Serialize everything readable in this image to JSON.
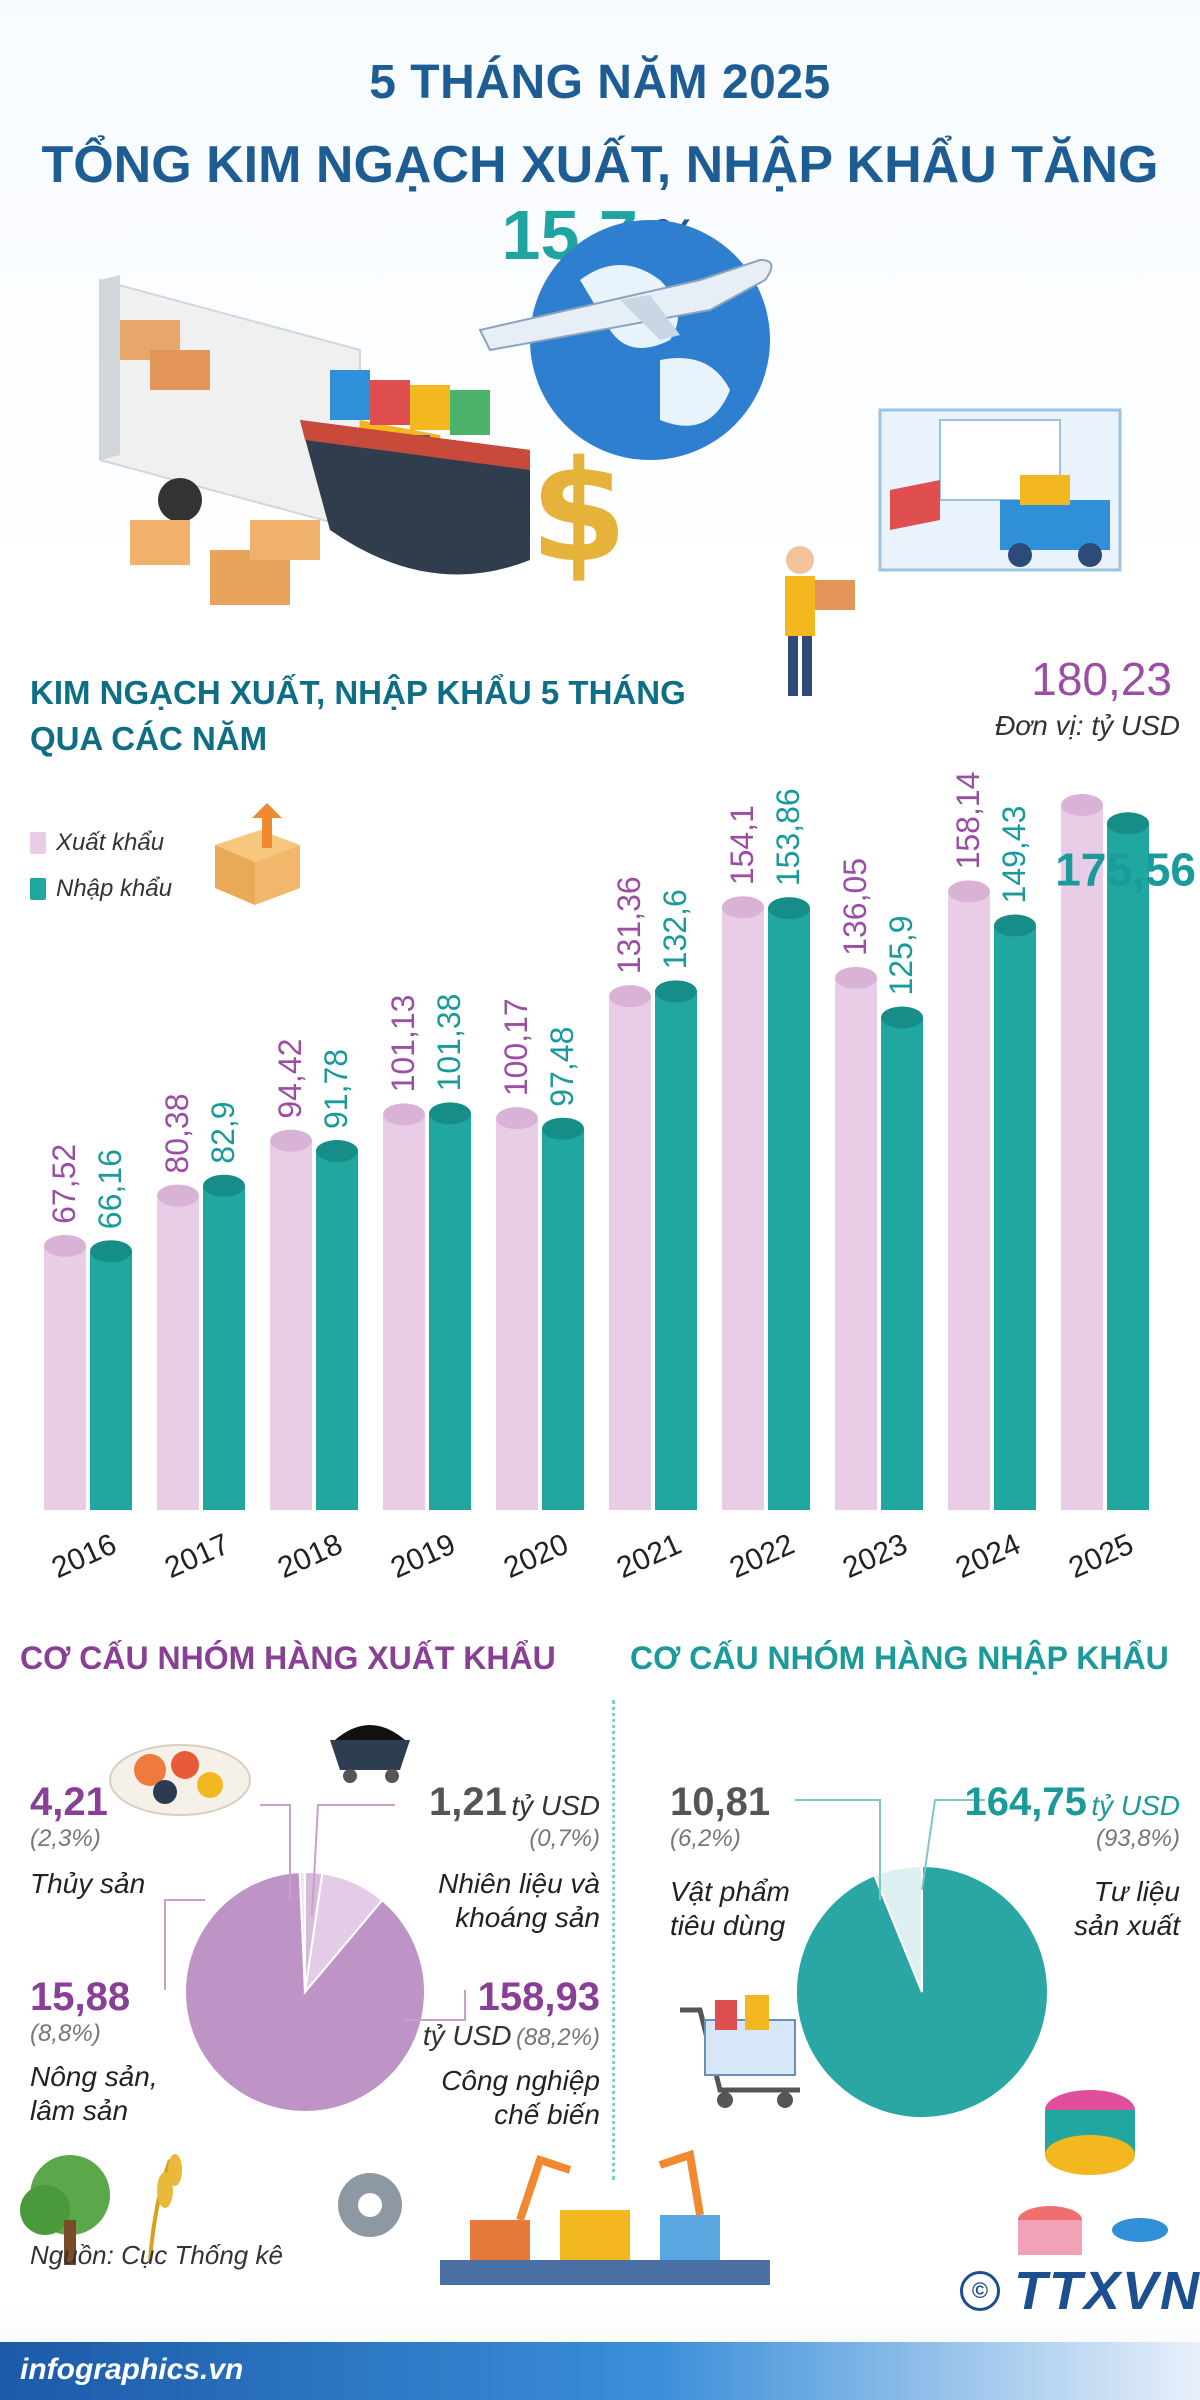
{
  "header": {
    "line1": "5 THÁNG NĂM 2025",
    "line2_text": "TỔNG KIM NGẠCH XUẤT, NHẬP KHẨU TĂNG ",
    "line2_value": "15,7",
    "line2_unit": " %"
  },
  "bar_section": {
    "title_line1": "KIM NGẠCH XUẤT, NHẬP KHẨU 5 THÁNG",
    "title_line2": "QUA CÁC NĂM",
    "unit": "Đơn vị: tỷ USD"
  },
  "colors": {
    "export": "#e9cde6",
    "import": "#1fa7a0",
    "export_text": "#9b4ea4",
    "import_text": "#1a9a9a"
  },
  "chart_data": [
    {
      "type": "bar",
      "categories": [
        "2016",
        "2017",
        "2018",
        "2019",
        "2020",
        "2021",
        "2022",
        "2023",
        "2024",
        "2025"
      ],
      "series": [
        {
          "name": "Xuất khẩu",
          "values": [
            67.52,
            80.38,
            94.42,
            101.13,
            100.17,
            131.36,
            154.1,
            136.05,
            158.14,
            180.23
          ],
          "labels": [
            "67,52",
            "80,38",
            "94,42",
            "101,13",
            "100,17",
            "131,36",
            "154,1",
            "136,05",
            "158,14",
            "180,23"
          ]
        },
        {
          "name": "Nhập khẩu",
          "values": [
            66.16,
            82.9,
            91.78,
            101.38,
            97.48,
            132.6,
            153.86,
            125.9,
            149.43,
            175.56
          ],
          "labels": [
            "66,16",
            "82,9",
            "91,78",
            "101,38",
            "97,48",
            "132,6",
            "153,86",
            "125,9",
            "149,43",
            "175,56"
          ]
        }
      ],
      "title": "KIM NGẠCH XUẤT, NHẬP KHẨU 5 THÁNG QUA CÁC NĂM",
      "ylabel": "Đơn vị: tỷ USD",
      "legend": "top-left",
      "grid": false
    },
    {
      "type": "pie",
      "title": "CƠ CẤU NHÓM HÀNG XUẤT KHẨU",
      "labels": [
        "Công nghiệp chế biến",
        "Nông sản, lâm sản",
        "Thủy sản",
        "Nhiên liệu và khoáng sản"
      ],
      "values": [
        158.93,
        15.88,
        4.21,
        1.21
      ],
      "percents": [
        "88,2%",
        "8,8%",
        "2,3%",
        "0,7%"
      ],
      "value_labels": [
        "158,93",
        "15,88",
        "4,21",
        "1,21"
      ]
    },
    {
      "type": "pie",
      "title": "CƠ CẤU NHÓM HÀNG NHẬP KHẨU",
      "labels": [
        "Tư liệu sản xuất",
        "Vật phẩm tiêu dùng"
      ],
      "values": [
        164.75,
        10.81
      ],
      "percents": [
        "93,8%",
        "6,2%"
      ],
      "value_labels": [
        "164,75",
        "10,81"
      ]
    }
  ],
  "pie_export": {
    "title": "CƠ CẤU NHÓM HÀNG XUẤT KHẨU",
    "thuy_san": {
      "value": "4,21",
      "pct": "(2,3%)",
      "name": "Thủy sản"
    },
    "nhien_lieu": {
      "value": "1,21",
      "unit": "tỷ USD",
      "pct": "(0,7%)",
      "name_line1": "Nhiên liệu và",
      "name_line2": "khoáng sản"
    },
    "nong_san": {
      "value": "15,88",
      "pct": "(8,8%)",
      "name_line1": "Nông sản,",
      "name_line2": "lâm sản"
    },
    "cong_nghiep": {
      "value": "158,93",
      "unit": "tỷ USD",
      "pct": "(88,2%)",
      "name_line1": "Công nghiệp",
      "name_line2": "chế biến"
    }
  },
  "pie_import": {
    "title": "CƠ CẤU NHÓM HÀNG NHẬP KHẨU",
    "tieu_dung": {
      "value": "10,81",
      "pct": "(6,2%)",
      "name_line1": "Vật phẩm",
      "name_line2": "tiêu dùng"
    },
    "tu_lieu": {
      "value": "164,75",
      "unit": "tỷ USD",
      "pct": "(93,8%)",
      "name_line1": "Tư liệu",
      "name_line2": "sản xuất"
    }
  },
  "footer": {
    "source": "Nguồn: Cục Thống kê",
    "site": "infographics.vn",
    "brand": "TTXVN",
    "copyright_symbol": "©"
  },
  "icons": [
    "truck-icon",
    "ship-icon",
    "plane-icon",
    "globe-icon",
    "dollar-icon",
    "worker-icon",
    "shop-icon",
    "box-icon",
    "seafood-icon",
    "coal-cart-icon",
    "tree-icon",
    "wheat-icon",
    "gear-icon",
    "factory-icon",
    "shopping-cart-icon",
    "thread-spool-icon"
  ]
}
